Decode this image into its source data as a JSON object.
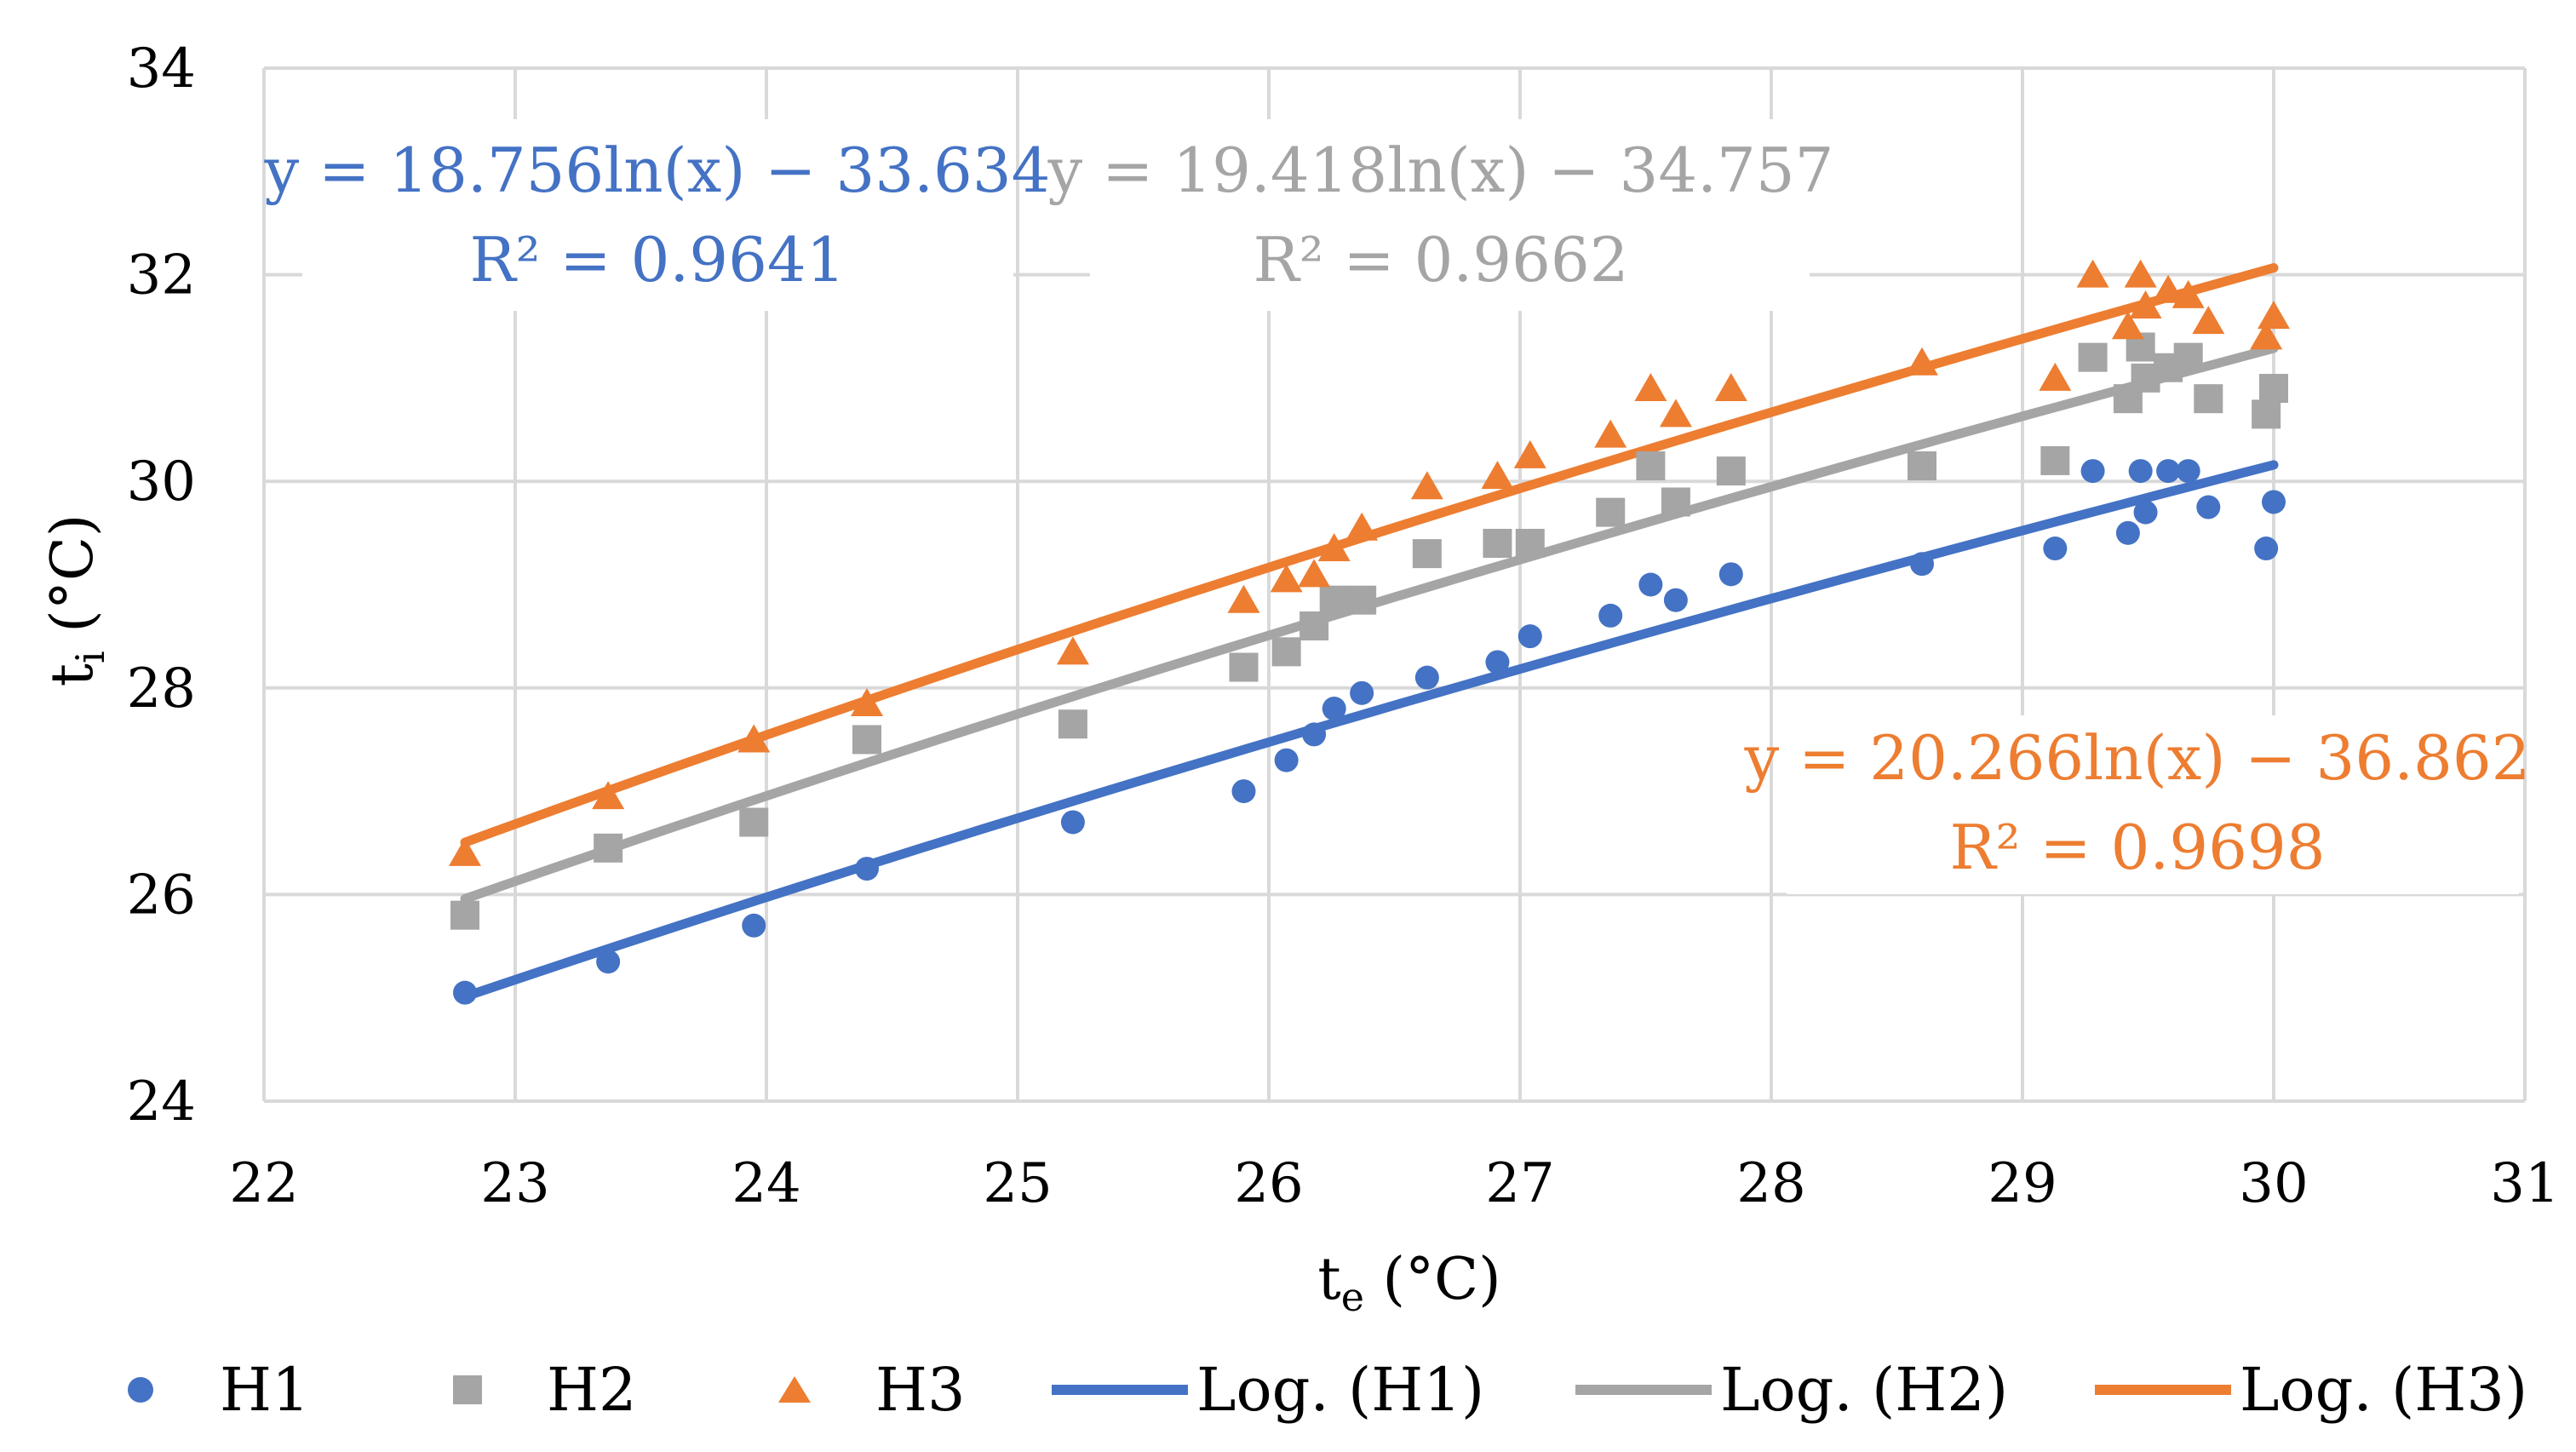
{
  "chart_data": {
    "type": "scatter",
    "title": "",
    "xlabel": "t",
    "xlabel_sub": "e",
    "xlabel_unit": " (°C)",
    "ylabel": "t",
    "ylabel_sub": "i",
    "ylabel_unit": " (°C)",
    "xlim": [
      22,
      31
    ],
    "ylim": [
      24,
      34
    ],
    "xticks": [
      22,
      23,
      24,
      25,
      26,
      27,
      28,
      29,
      30,
      31
    ],
    "yticks": [
      24,
      26,
      28,
      30,
      32,
      34
    ],
    "grid": true,
    "legend_position": "bottom",
    "colors": {
      "H1": "#4472C4",
      "H2": "#A5A5A5",
      "H3": "#ED7D31",
      "grid": "#D9D9D9"
    },
    "series": [
      {
        "name": "H1",
        "marker": "circle",
        "x": [
          22.8,
          23.37,
          23.95,
          24.4,
          25.22,
          25.9,
          26.07,
          26.18,
          26.26,
          26.37,
          26.63,
          26.91,
          27.04,
          27.36,
          27.52,
          27.62,
          27.84,
          28.6,
          29.13,
          29.28,
          29.42,
          29.47,
          29.49,
          29.58,
          29.66,
          29.74,
          29.97,
          30.0
        ],
        "y": [
          25.05,
          25.35,
          25.7,
          26.25,
          26.7,
          27.0,
          27.3,
          27.55,
          27.8,
          27.95,
          28.1,
          28.25,
          28.5,
          28.7,
          29.0,
          28.85,
          29.1,
          29.2,
          29.35,
          30.1,
          29.5,
          30.1,
          29.7,
          30.1,
          30.1,
          29.75,
          29.35,
          29.8
        ]
      },
      {
        "name": "H2",
        "marker": "square",
        "x": [
          22.8,
          23.37,
          23.95,
          24.4,
          25.22,
          25.9,
          26.07,
          26.18,
          26.26,
          26.37,
          26.63,
          26.91,
          27.04,
          27.36,
          27.52,
          27.62,
          27.84,
          28.6,
          29.13,
          29.28,
          29.42,
          29.47,
          29.49,
          29.58,
          29.66,
          29.74,
          29.97,
          30.0
        ],
        "y": [
          25.8,
          26.45,
          26.7,
          27.5,
          27.65,
          28.2,
          28.35,
          28.6,
          28.85,
          28.85,
          29.3,
          29.4,
          29.4,
          29.7,
          30.15,
          29.8,
          30.1,
          30.15,
          30.2,
          31.2,
          30.8,
          31.3,
          31.0,
          31.1,
          31.2,
          30.8,
          30.65,
          30.9
        ]
      },
      {
        "name": "H3",
        "marker": "triangle",
        "x": [
          22.8,
          23.37,
          23.95,
          24.4,
          25.22,
          25.9,
          26.07,
          26.18,
          26.26,
          26.37,
          26.63,
          26.91,
          27.04,
          27.36,
          27.52,
          27.62,
          27.84,
          28.6,
          29.13,
          29.28,
          29.42,
          29.47,
          29.49,
          29.58,
          29.66,
          29.74,
          29.97,
          30.0
        ],
        "y": [
          26.4,
          26.95,
          27.5,
          27.85,
          28.35,
          28.85,
          29.05,
          29.1,
          29.35,
          29.55,
          29.95,
          30.05,
          30.25,
          30.45,
          30.9,
          30.65,
          30.9,
          31.15,
          31.0,
          32.0,
          31.5,
          32.0,
          31.7,
          31.85,
          31.8,
          31.55,
          31.4,
          31.6
        ]
      }
    ],
    "trendlines": [
      {
        "name": "Log. (H1)",
        "series": "H1",
        "a": 18.756,
        "b": -33.634,
        "x_range": [
          22.8,
          30.0
        ],
        "equation": "y = 18.756ln(x) − 33.634",
        "r2": "R² = 0.9641"
      },
      {
        "name": "Log. (H2)",
        "series": "H2",
        "a": 19.418,
        "b": -34.757,
        "x_range": [
          22.8,
          30.0
        ],
        "equation": "y = 19.418ln(x) − 34.757",
        "r2": "R² = 0.9662"
      },
      {
        "name": "Log. (H3)",
        "series": "H3",
        "a": 20.266,
        "b": -36.862,
        "x_range": [
          22.8,
          30.0
        ],
        "equation": "y = 20.266ln(x) − 36.862",
        "r2": "R² = 0.9698"
      }
    ],
    "legend": [
      "H1",
      "H2",
      "H3",
      "Log. (H1)",
      "Log. (H2)",
      "Log. (H3)"
    ]
  }
}
